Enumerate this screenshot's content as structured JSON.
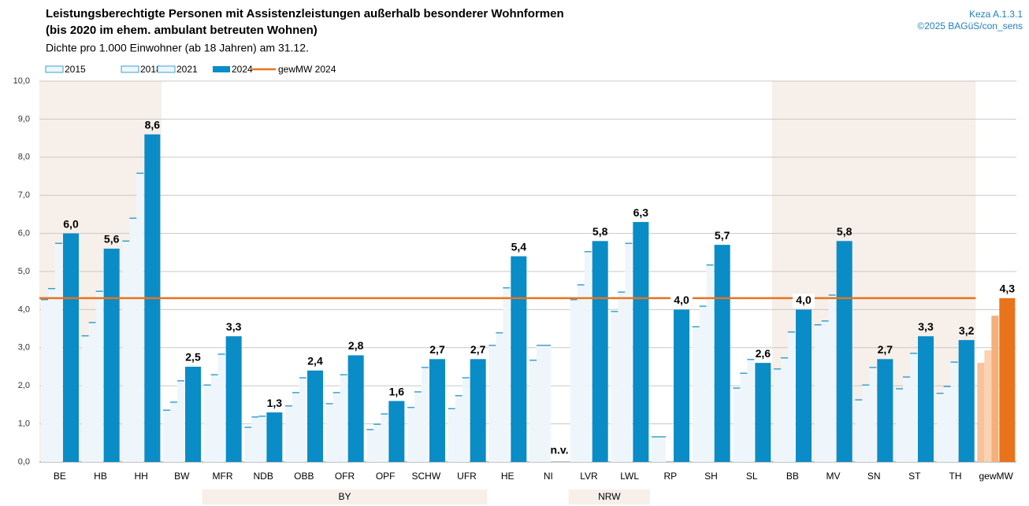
{
  "chart_data": {
    "type": "bar",
    "title": "Leistungsberechtigte Personen mit Assistenzleistungen außerhalb besonderer Wohnformen",
    "title_line2": "(bis 2020 im ehem. ambulant betreuten Wohnen)",
    "subtitle": "Dichte pro 1.000 Einwohner (ab 18 Jahren) am 31.12.",
    "source_id": "Keza A.1.3.1",
    "copyright": "©2025 BAGüS/con_sens",
    "categories": [
      "BE",
      "HB",
      "HH",
      "BW",
      "MFR",
      "NDB",
      "OBB",
      "OFR",
      "OPF",
      "SCHW",
      "UFR",
      "HE",
      "NI",
      "LVR",
      "LWL",
      "RP",
      "SH",
      "SL",
      "BB",
      "MV",
      "SN",
      "ST",
      "TH",
      "gewMW"
    ],
    "groups": [
      {
        "label": "BY"
      },
      {
        "label": "NRW"
      }
    ],
    "series": [
      {
        "name": "2015",
        "color": "#eef6fb",
        "edge": "#0a8cc6",
        "highlight_color": "#f7c39a",
        "values": [
          4.26,
          3.31,
          5.8,
          1.36,
          2.02,
          0.91,
          1.47,
          1.53,
          0.85,
          1.43,
          1.4,
          3.06,
          2.67,
          4.26,
          3.95,
          0.66,
          3.55,
          1.94,
          2.44,
          3.6,
          1.63,
          1.92,
          1.8,
          2.6
        ]
      },
      {
        "name": "2018",
        "color": "#eef6fb",
        "edge": "#0a8cc6",
        "highlight_color": "#fad3b3",
        "values": [
          4.55,
          3.66,
          6.4,
          1.57,
          2.29,
          1.18,
          1.82,
          1.82,
          0.99,
          1.84,
          1.74,
          3.39,
          3.06,
          4.65,
          4.46,
          0.66,
          4.09,
          2.33,
          2.73,
          3.7,
          2.02,
          2.23,
          1.98,
          2.93
        ]
      },
      {
        "name": "2021",
        "color": "#eef6fb",
        "edge": "#0a8cc6",
        "highlight_color": "#f5b07a",
        "values": [
          5.74,
          4.48,
          7.58,
          2.13,
          2.83,
          1.2,
          2.21,
          2.29,
          1.26,
          2.48,
          2.21,
          4.57,
          3.06,
          5.52,
          5.74,
          null,
          5.17,
          2.69,
          3.41,
          4.38,
          2.48,
          2.85,
          2.62,
          3.84
        ]
      },
      {
        "name": "2024",
        "color": "#0a8cc6",
        "edge": "#0a8cc6",
        "highlight_color": "#e8731b",
        "values": [
          6.0,
          5.6,
          8.6,
          2.5,
          3.3,
          1.3,
          2.4,
          2.8,
          1.6,
          2.7,
          2.7,
          5.4,
          null,
          5.8,
          6.3,
          4.0,
          5.7,
          2.6,
          4.0,
          5.8,
          2.7,
          3.3,
          3.2,
          4.3
        ],
        "value_labels": [
          "6,0",
          "5,6",
          "8,6",
          "2,5",
          "3,3",
          "1,3",
          "2,4",
          "2,8",
          "1,6",
          "2,7",
          "2,7",
          "5,4",
          "n.v.",
          "5,8",
          "6,3",
          "4,0",
          "5,7",
          "2,6",
          "4,0",
          "5,8",
          "2,7",
          "3,3",
          "3,2",
          "4,3"
        ]
      }
    ],
    "reference_line": {
      "name": "gewMW 2024",
      "value": 4.3,
      "color": "#e8731b"
    },
    "ylim": [
      0,
      10
    ],
    "yticks": [
      {
        "value": 0,
        "label": "0,0"
      },
      {
        "value": 1,
        "label": "1,0"
      },
      {
        "value": 2,
        "label": "2,0"
      },
      {
        "value": 3,
        "label": "3,0"
      },
      {
        "value": 4,
        "label": "4,0"
      },
      {
        "value": 5,
        "label": "5,0"
      },
      {
        "value": 6,
        "label": "6,0"
      },
      {
        "value": 7,
        "label": "7,0"
      },
      {
        "value": 8,
        "label": "8,0"
      },
      {
        "value": 9,
        "label": "9,0"
      },
      {
        "value": 10,
        "label": "10,0"
      }
    ],
    "grid": true,
    "legend": "top-left"
  }
}
